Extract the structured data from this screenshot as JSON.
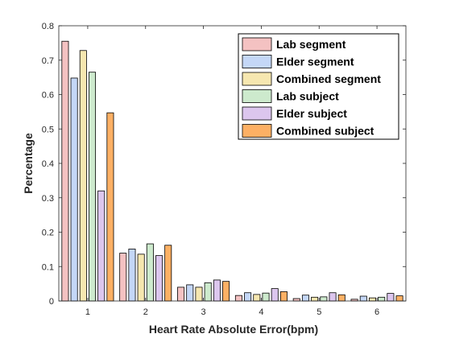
{
  "chart_data": {
    "type": "bar",
    "title": "",
    "xlabel": "Heart Rate Absolute Error(bpm)",
    "ylabel": "Percentage",
    "categories": [
      "1",
      "2",
      "3",
      "4",
      "5",
      "6"
    ],
    "ylim": [
      0,
      0.8
    ],
    "yticks": [
      "0",
      "0.1",
      "0.2",
      "0.3",
      "0.4",
      "0.5",
      "0.6",
      "0.7",
      "0.8"
    ],
    "grid": false,
    "legend_position": "top-right",
    "series": [
      {
        "name": "Lab segment",
        "color": "#f4c2c2",
        "values": [
          0.755,
          0.139,
          0.04,
          0.016,
          0.007,
          0.005
        ]
      },
      {
        "name": "Elder segment",
        "color": "#c4d7f7",
        "values": [
          0.648,
          0.151,
          0.047,
          0.024,
          0.017,
          0.014
        ]
      },
      {
        "name": "Combined segment",
        "color": "#f6e7b0",
        "values": [
          0.728,
          0.136,
          0.04,
          0.019,
          0.011,
          0.009
        ]
      },
      {
        "name": "Lab subject",
        "color": "#cdeacd",
        "values": [
          0.665,
          0.166,
          0.053,
          0.023,
          0.012,
          0.011
        ]
      },
      {
        "name": "Elder subject",
        "color": "#dcc6ee",
        "values": [
          0.32,
          0.132,
          0.061,
          0.036,
          0.024,
          0.022
        ]
      },
      {
        "name": "Combined subject",
        "color": "#fdb064",
        "values": [
          0.547,
          0.162,
          0.057,
          0.027,
          0.018,
          0.015
        ]
      }
    ]
  }
}
